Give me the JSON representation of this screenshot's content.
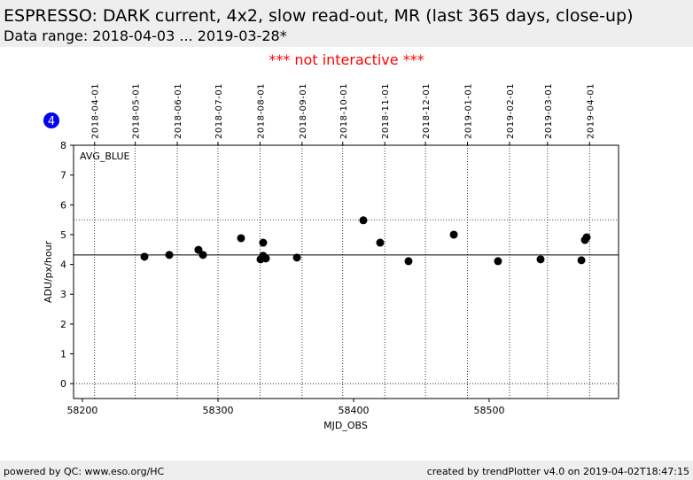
{
  "chart_data": {
    "type": "scatter",
    "title": "ESPRESSO: DARK current, 4x2, slow read-out, MR (last 365 days, close-up)",
    "subtitle": "Data range: 2018-04-03 ... 2019-03-28*",
    "note": "*** not interactive ***",
    "badge": "4",
    "series_label": "AVG_BLUE",
    "xlabel": "MJD_OBS",
    "ylabel": "ADU/px/hour",
    "footer_left": "powered by QC: www.eso.org/HC",
    "footer_right": "created by trendPlotter v4.0 on 2019-04-02T18:47:15",
    "color": "#000000",
    "x": [
      58245.8,
      58264.1,
      58285.6,
      58288.9,
      58317.0,
      58331.4,
      58333.3,
      58333.3,
      58335.3,
      58358.2,
      58407.2,
      58419.6,
      58440.5,
      58473.9,
      58506.5,
      58537.9,
      58568.0,
      58570.6,
      58571.9
    ],
    "values": [
      4.26,
      4.32,
      4.49,
      4.32,
      4.88,
      4.17,
      4.29,
      4.73,
      4.2,
      4.23,
      5.48,
      4.73,
      4.11,
      5.0,
      4.11,
      4.17,
      4.14,
      4.82,
      4.91
    ],
    "xlim": [
      58193.5,
      58595.4
    ],
    "ylim": [
      -0.5,
      8
    ],
    "xticks": [
      58200,
      58300,
      58400,
      58500
    ],
    "yticks": [
      0,
      1,
      2,
      3,
      4,
      5,
      6,
      7,
      8
    ],
    "x2ticks": [
      {
        "value": 58209,
        "label": "2018-04-01"
      },
      {
        "value": 58239,
        "label": "2018-05-01"
      },
      {
        "value": 58270,
        "label": "2018-06-01"
      },
      {
        "value": 58300,
        "label": "2018-07-01"
      },
      {
        "value": 58331,
        "label": "2018-08-01"
      },
      {
        "value": 58362,
        "label": "2018-09-01"
      },
      {
        "value": 58392,
        "label": "2018-10-01"
      },
      {
        "value": 58423,
        "label": "2018-11-01"
      },
      {
        "value": 58453,
        "label": "2018-12-01"
      },
      {
        "value": 58484,
        "label": "2019-01-01"
      },
      {
        "value": 58515,
        "label": "2019-02-01"
      },
      {
        "value": 58543,
        "label": "2019-03-01"
      },
      {
        "value": 58574,
        "label": "2019-04-01"
      }
    ],
    "reference_lines": [
      {
        "value": 4.32,
        "style": "solid"
      },
      {
        "value": 5.5,
        "style": "dotted"
      },
      {
        "value": 0,
        "style": "dotted"
      }
    ]
  }
}
